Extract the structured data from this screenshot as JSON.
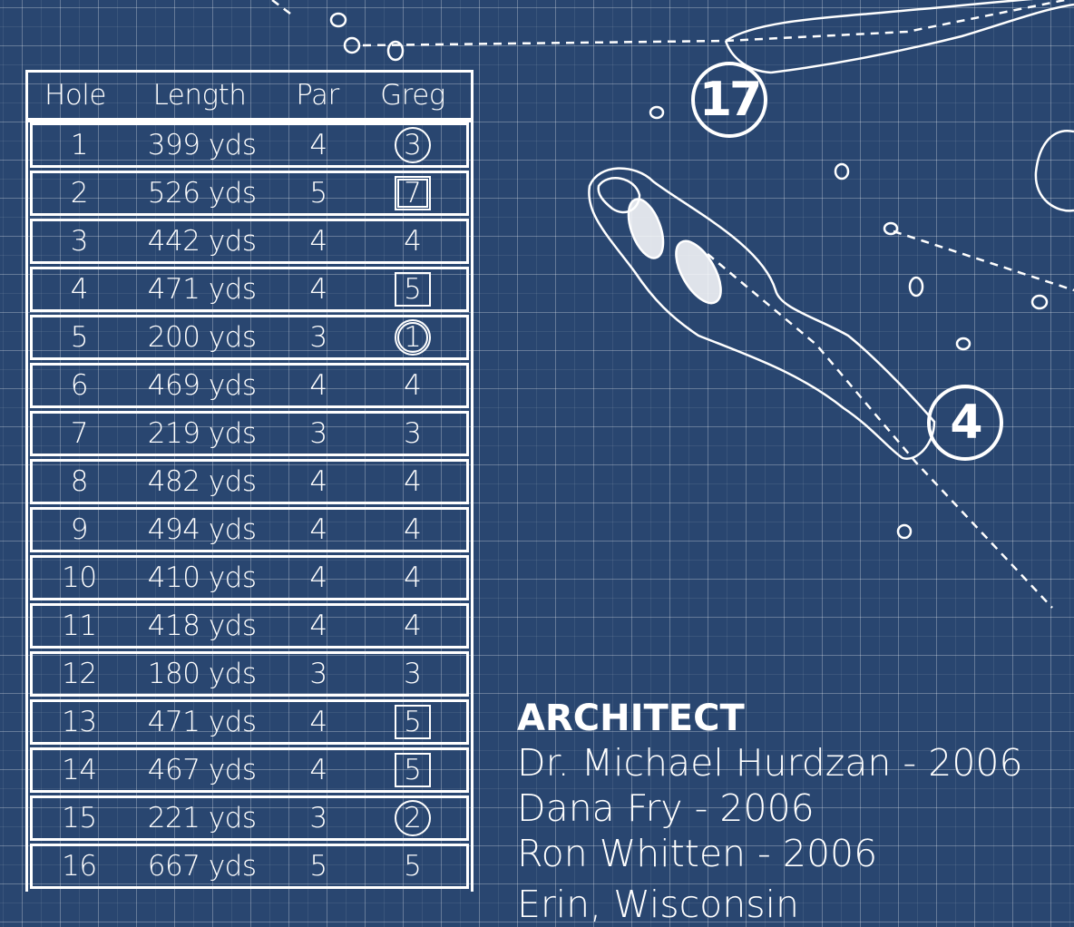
{
  "colors": {
    "background": "#294670",
    "lines": "#ffffff"
  },
  "scorecard": {
    "headers": [
      "Hole",
      "Length",
      "Par",
      "Greg"
    ],
    "rows": [
      {
        "hole": "1",
        "length": "399 yds",
        "par": "4",
        "score": "3",
        "mark": "circle"
      },
      {
        "hole": "2",
        "length": "526 yds",
        "par": "5",
        "score": "7",
        "mark": "double-square"
      },
      {
        "hole": "3",
        "length": "442 yds",
        "par": "4",
        "score": "4",
        "mark": "none"
      },
      {
        "hole": "4",
        "length": "471 yds",
        "par": "4",
        "score": "5",
        "mark": "square"
      },
      {
        "hole": "5",
        "length": "200 yds",
        "par": "3",
        "score": "1",
        "mark": "double-circle"
      },
      {
        "hole": "6",
        "length": "469 yds",
        "par": "4",
        "score": "4",
        "mark": "none"
      },
      {
        "hole": "7",
        "length": "219 yds",
        "par": "3",
        "score": "3",
        "mark": "none"
      },
      {
        "hole": "8",
        "length": "482 yds",
        "par": "4",
        "score": "4",
        "mark": "none"
      },
      {
        "hole": "9",
        "length": "494 yds",
        "par": "4",
        "score": "4",
        "mark": "none"
      },
      {
        "hole": "10",
        "length": "410 yds",
        "par": "4",
        "score": "4",
        "mark": "none"
      },
      {
        "hole": "11",
        "length": "418 yds",
        "par": "4",
        "score": "4",
        "mark": "none"
      },
      {
        "hole": "12",
        "length": "180 yds",
        "par": "3",
        "score": "3",
        "mark": "none"
      },
      {
        "hole": "13",
        "length": "471 yds",
        "par": "4",
        "score": "5",
        "mark": "square"
      },
      {
        "hole": "14",
        "length": "467 yds",
        "par": "4",
        "score": "5",
        "mark": "square"
      },
      {
        "hole": "15",
        "length": "221 yds",
        "par": "3",
        "score": "2",
        "mark": "circle"
      },
      {
        "hole": "16",
        "length": "667 yds",
        "par": "5",
        "score": "5",
        "mark": "none"
      }
    ]
  },
  "map": {
    "hole_badges": [
      "17",
      "4"
    ]
  },
  "info": {
    "heading": "ARCHITECT",
    "architects": [
      "Dr. Michael Hurdzan  -  2006",
      "Dana Fry  -  2006",
      "Ron Whitten  -  2006"
    ],
    "location": "Erin, Wisconsin"
  }
}
